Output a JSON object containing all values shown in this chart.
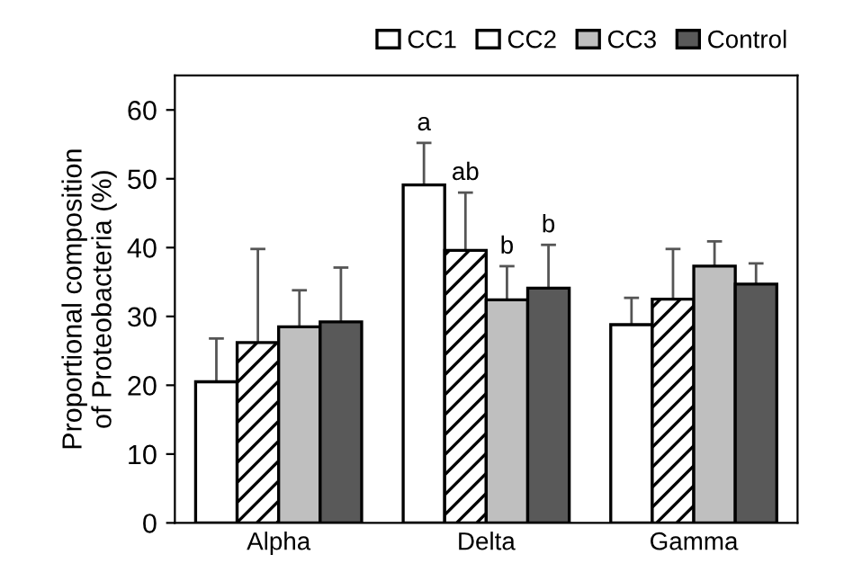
{
  "chart_data": {
    "type": "bar",
    "ylabel": "Proportional composition\nof Proteobacteria (%)",
    "categories": [
      "Alpha",
      "Delta",
      "Gamma"
    ],
    "series": [
      {
        "name": "CC1",
        "color": "#ffffff",
        "values": [
          20.5,
          49.1,
          28.8
        ],
        "errors": [
          6.3,
          6.1,
          3.9
        ]
      },
      {
        "name": "CC2",
        "color": "#ffffff",
        "values": [
          26.2,
          39.6,
          32.5
        ],
        "errors": [
          13.6,
          8.4,
          7.3
        ]
      },
      {
        "name": "CC3",
        "color": "#bfbfbf",
        "values": [
          28.5,
          32.4,
          37.3
        ],
        "errors": [
          5.3,
          4.9,
          3.6
        ]
      },
      {
        "name": "Control",
        "color": "#595959",
        "values": [
          29.2,
          34.1,
          34.7
        ],
        "errors": [
          7.9,
          6.3,
          3.0
        ]
      }
    ],
    "ylim": [
      0,
      65
    ],
    "yticks": [
      0,
      10,
      20,
      30,
      40,
      50,
      60
    ],
    "grid": false,
    "legend": "top right",
    "annotations": [
      "a",
      "ab",
      "b",
      "b"
    ]
  }
}
